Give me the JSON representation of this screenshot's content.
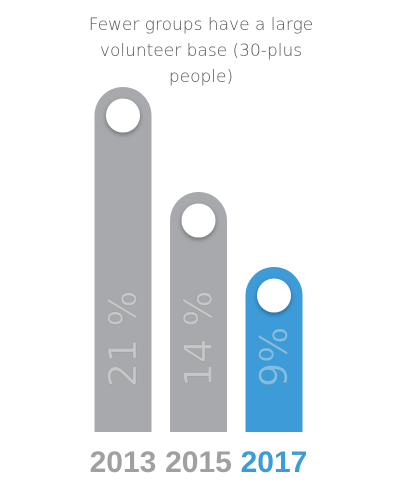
{
  "chart_data": {
    "type": "bar",
    "title": "Fewer groups have a large volunteer base (30-plus people)",
    "categories": [
      "2013",
      "2015",
      "2017"
    ],
    "values": [
      21,
      14,
      9
    ],
    "value_labels": [
      "21 %",
      "14 %",
      "9%"
    ],
    "colors": [
      "#a7a9ac",
      "#a7a9ac",
      "#3d9bd8"
    ]
  }
}
